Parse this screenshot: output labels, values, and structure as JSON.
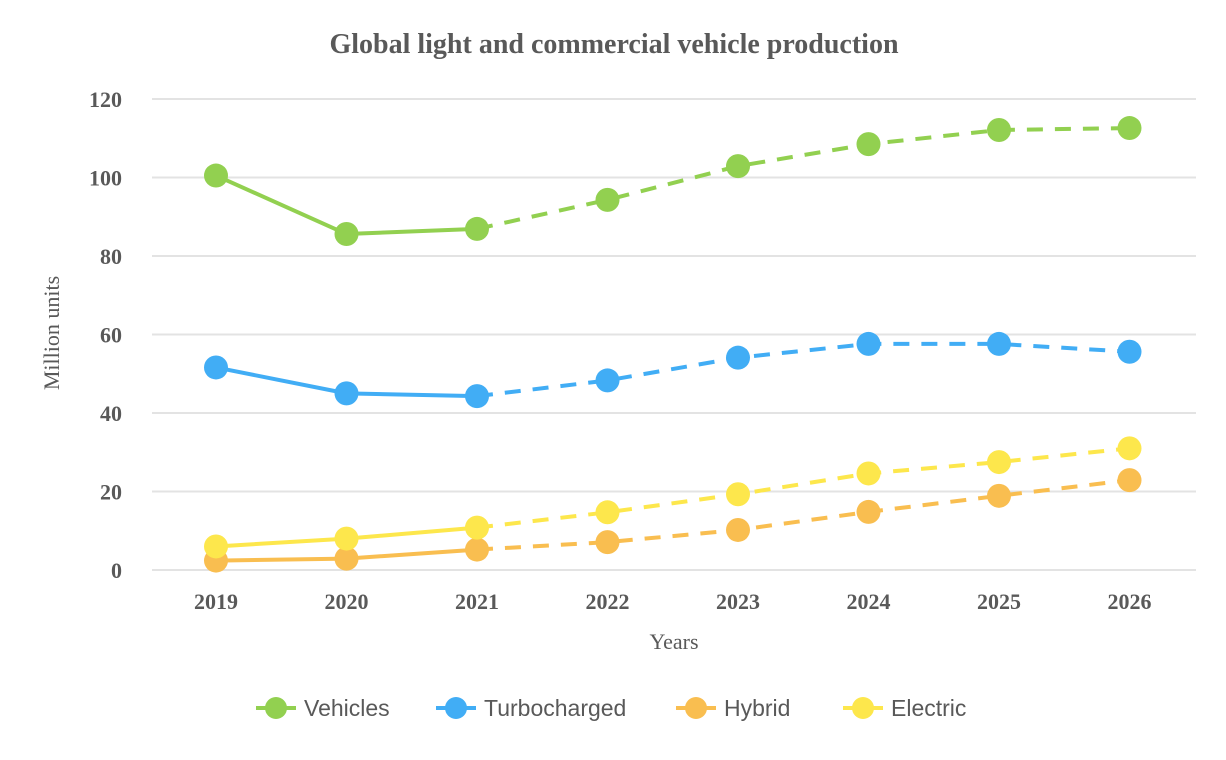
{
  "chart_data": {
    "type": "line",
    "title": "Global light and commercial vehicle production",
    "xlabel": "Years",
    "ylabel": "Million units",
    "categories": [
      "2019",
      "2020",
      "2021",
      "2022",
      "2023",
      "2024",
      "2025",
      "2026"
    ],
    "ylim": [
      0,
      120
    ],
    "yticks": [
      0,
      20,
      40,
      60,
      80,
      100,
      120
    ],
    "grid": true,
    "legend_position": "bottom",
    "forecast_start_index": 2,
    "series": [
      {
        "name": "Vehicles",
        "color": "#92d050",
        "values": [
          100.5,
          85.6,
          86.9,
          94.3,
          102.9,
          108.5,
          112.1,
          112.6
        ]
      },
      {
        "name": "Turbocharged",
        "color": "#41adf5",
        "values": [
          51.6,
          45.0,
          44.3,
          48.3,
          54.1,
          57.6,
          57.6,
          55.6
        ]
      },
      {
        "name": "Hybrid",
        "color": "#f9be50",
        "values": [
          2.4,
          2.9,
          5.2,
          7.1,
          10.2,
          14.8,
          18.9,
          22.9
        ]
      },
      {
        "name": "Electric",
        "color": "#fde74c",
        "values": [
          6.0,
          8.0,
          10.8,
          14.7,
          19.3,
          24.6,
          27.5,
          31.0
        ]
      }
    ]
  }
}
